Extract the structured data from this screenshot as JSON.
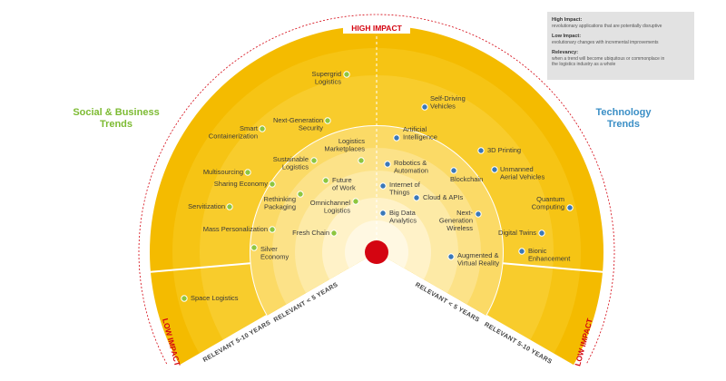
{
  "high_impact": "HIGH IMPACT",
  "low_impact_left": "LOW IMPACT",
  "low_impact_right": "LOW IMPACT",
  "left_heading": [
    "Social & Business",
    "Trends"
  ],
  "right_heading": [
    "Technology",
    "Trends"
  ],
  "bands": {
    "left_inner": "RELEVANT < 5 YEARS",
    "left_outer": "RELEVANT 5-10 YEARS",
    "right_inner": "RELEVANT < 5 YEARS",
    "right_outer": "RELEVANT 5-10 YEARS"
  },
  "legend": [
    {
      "term": "High Impact:",
      "text": [
        "revolutionary applications that are potentially disruptive"
      ]
    },
    {
      "term": "Low Impact:",
      "text": [
        "evolutionary changes with incremental improvements"
      ]
    },
    {
      "term": "Relevancy:",
      "text": [
        "when a trend will become ubiquitous or commonplace in",
        "the logistics industry as a whole"
      ]
    }
  ],
  "social_business_trends": [
    [
      "Supergrid",
      "Logistics"
    ],
    [
      "Next-Generation",
      "Security"
    ],
    [
      "Smart",
      "Containerization"
    ],
    [
      "Sustainable",
      "Logistics"
    ],
    [
      "Logistics",
      "Marketplaces"
    ],
    [
      "Multisourcing"
    ],
    [
      "Sharing Economy"
    ],
    [
      "Future",
      "of Work"
    ],
    [
      "Rethinking",
      "Packaging"
    ],
    [
      "Servitization"
    ],
    [
      "Omnichannel",
      "Logistics"
    ],
    [
      "Mass Personalization"
    ],
    [
      "Fresh Chain"
    ],
    [
      "Silver",
      "Economy"
    ],
    [
      "Space Logistics"
    ]
  ],
  "technology_trends": [
    [
      "Self-Driving",
      "Vehicles"
    ],
    [
      "Artificial",
      "Intelligence"
    ],
    [
      "3D Printing"
    ],
    [
      "Robotics &",
      "Automation"
    ],
    [
      "Blockchain"
    ],
    [
      "Unmanned",
      "Aerial Vehicles"
    ],
    [
      "Internet of",
      "Things"
    ],
    [
      "Cloud & APIs"
    ],
    [
      "Quantum",
      "Computing"
    ],
    [
      "Big Data",
      "Analytics"
    ],
    [
      "Next-",
      "Generation",
      "Wireless"
    ],
    [
      "Digital Twins"
    ],
    [
      "Bionic",
      "Enhancement"
    ],
    [
      "Augmented &",
      "Virtual Reality"
    ]
  ]
}
